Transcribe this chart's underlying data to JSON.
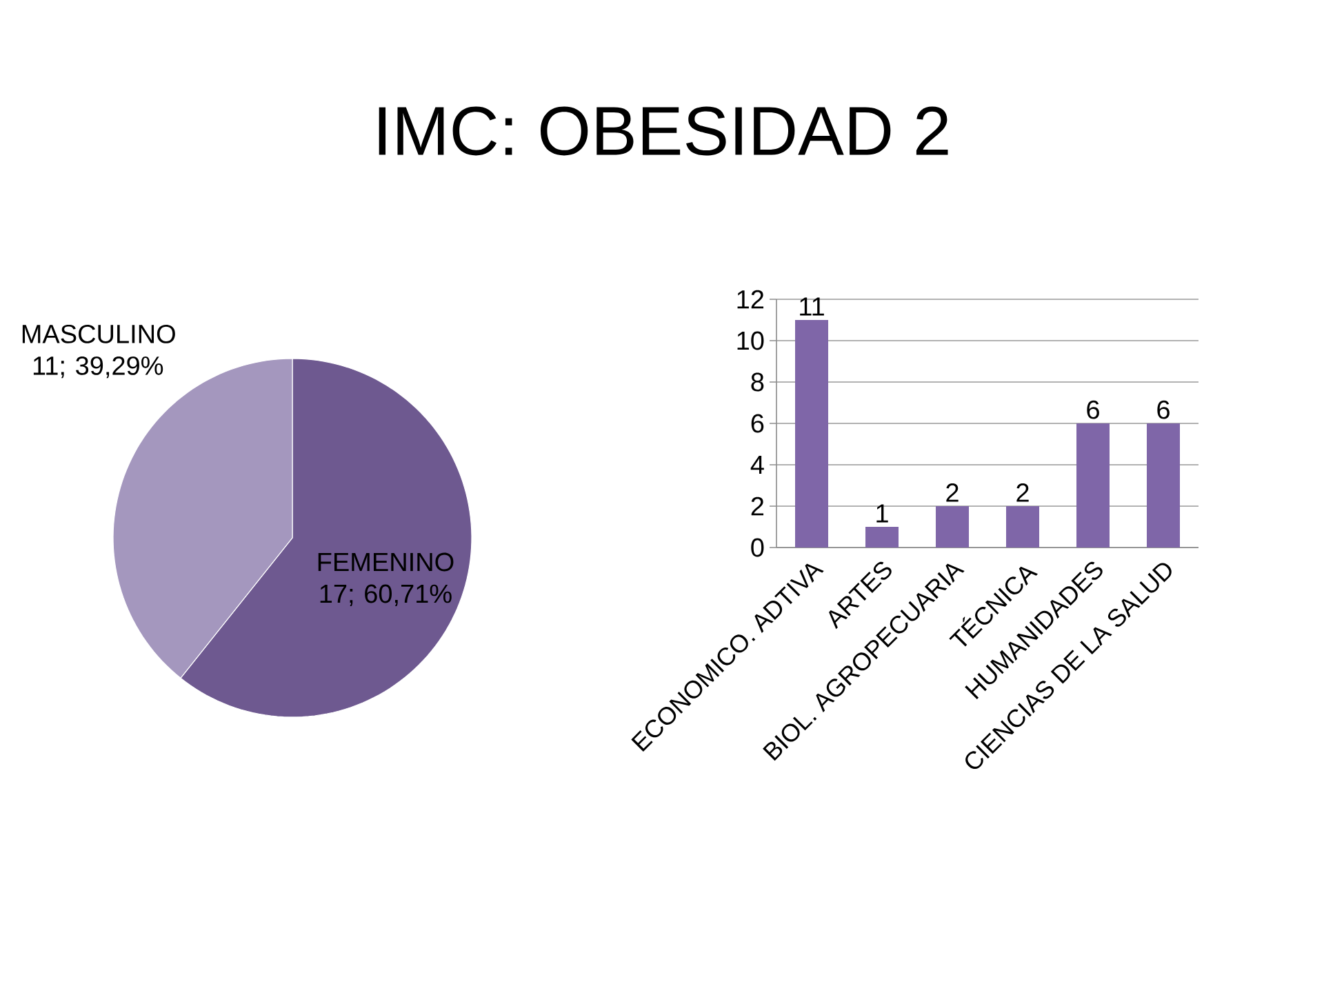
{
  "chart_data": [
    {
      "type": "pie",
      "title": "IMC: OBESIDAD 2",
      "categories": [
        "FEMENINO",
        "MASCULINO"
      ],
      "values": [
        17,
        11
      ],
      "colors": [
        "#6e5990",
        "#a497be"
      ],
      "value_labels": [
        "17; 60,71%",
        "11; 39,29%"
      ]
    },
    {
      "type": "bar",
      "categories": [
        "ECONOMICO. ADTIVA",
        "ARTES",
        "BIOL. AGROPECUARIA",
        "TÉCNICA",
        "HUMANIDADES",
        "CIENCIAS DE LA SALUD"
      ],
      "values": [
        11,
        1,
        2,
        2,
        6,
        6
      ],
      "color": "#7f66a8",
      "ylim": [
        0,
        12
      ],
      "yticks": [
        0,
        2,
        4,
        6,
        8,
        10,
        12
      ],
      "grid": "y",
      "data_labels": true
    }
  ]
}
